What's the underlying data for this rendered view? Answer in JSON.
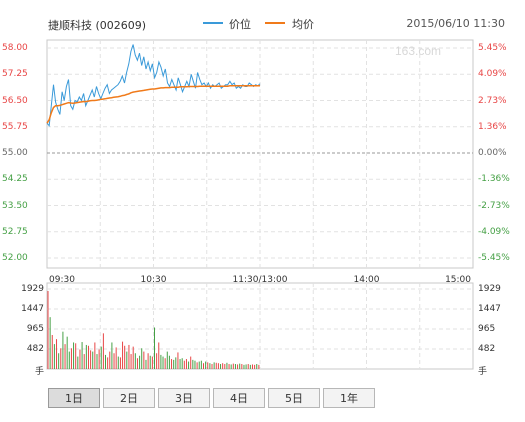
{
  "header": {
    "title": "捷顺科技 (002609)",
    "legend": [
      {
        "label": "价位",
        "color": "#3a9ad9"
      },
      {
        "label": "均价",
        "color": "#f07a1a"
      }
    ],
    "timestamp": "2015/06/10 11:30",
    "watermark": "163.com"
  },
  "colors": {
    "up": "#e84545",
    "down": "#45a045",
    "neutral": "#666666"
  },
  "chart_data": {
    "type": "line",
    "price_ticks": [
      "58.00",
      "57.25",
      "56.50",
      "55.75",
      "55.00",
      "54.25",
      "53.50",
      "52.75",
      "52.00"
    ],
    "percent_ticks": [
      "5.45%",
      "4.09%",
      "2.73%",
      "1.36%",
      "0.00%",
      "-1.36%",
      "-2.73%",
      "-4.09%",
      "-5.45%"
    ],
    "time_ticks": [
      "09:30",
      "10:30",
      "11:30/13:00",
      "14:00",
      "15:00"
    ],
    "ylim": [
      52.0,
      58.0
    ],
    "prev_close": 55.0,
    "series": [
      {
        "name": "价位",
        "color": "#3a9ad9",
        "values": [
          55.85,
          55.78,
          56.35,
          56.95,
          56.45,
          56.25,
          56.1,
          56.75,
          56.5,
          56.9,
          57.1,
          56.35,
          56.25,
          56.5,
          56.45,
          56.6,
          56.5,
          56.7,
          56.35,
          56.5,
          56.65,
          56.8,
          56.6,
          56.9,
          56.7,
          56.55,
          56.7,
          56.85,
          56.95,
          56.7,
          56.8,
          56.85,
          56.9,
          56.95,
          57.05,
          57.2,
          57.0,
          57.3,
          57.55,
          57.9,
          58.1,
          57.8,
          57.65,
          57.85,
          57.5,
          57.75,
          57.4,
          57.6,
          57.35,
          57.55,
          57.15,
          57.3,
          57.6,
          57.45,
          57.2,
          57.4,
          57.0,
          56.9,
          57.1,
          56.95,
          56.8,
          57.15,
          56.95,
          56.75,
          56.9,
          57.05,
          56.9,
          57.25,
          57.05,
          56.85,
          57.3,
          57.1,
          56.95,
          57.0,
          56.9,
          57.0,
          56.85,
          56.95,
          56.9,
          56.95,
          57.0,
          56.85,
          56.9,
          56.95,
          56.95,
          57.05,
          56.95,
          57.0,
          56.85,
          56.9,
          56.85,
          56.95,
          56.9,
          56.9,
          57.0,
          56.95,
          56.9,
          56.95,
          56.92,
          56.98
        ]
      },
      {
        "name": "均价",
        "color": "#f07a1a",
        "values": [
          55.85,
          55.95,
          56.15,
          56.3,
          56.35,
          56.35,
          56.36,
          56.38,
          56.4,
          56.42,
          56.44,
          56.43,
          56.42,
          56.43,
          56.44,
          56.45,
          56.46,
          56.47,
          56.47,
          56.48,
          56.49,
          56.5,
          56.5,
          56.51,
          56.52,
          56.53,
          56.54,
          56.55,
          56.56,
          56.57,
          56.58,
          56.59,
          56.6,
          56.61,
          56.62,
          56.64,
          56.65,
          56.67,
          56.69,
          56.72,
          56.74,
          56.75,
          56.76,
          56.77,
          56.78,
          56.79,
          56.8,
          56.81,
          56.82,
          56.83,
          56.83,
          56.84,
          56.85,
          56.86,
          56.86,
          56.87,
          56.87,
          56.87,
          56.88,
          56.88,
          56.88,
          56.88,
          56.89,
          56.89,
          56.89,
          56.89,
          56.9,
          56.9,
          56.9,
          56.9,
          56.9,
          56.91,
          56.91,
          56.91,
          56.91,
          56.91,
          56.91,
          56.91,
          56.91,
          56.91,
          56.91,
          56.91,
          56.91,
          56.91,
          56.91,
          56.92,
          56.92,
          56.92,
          56.92,
          56.92,
          56.92,
          56.92,
          56.92,
          56.92,
          56.92,
          56.92,
          56.92,
          56.92,
          56.92,
          56.92
        ]
      }
    ],
    "volume": {
      "ticks": [
        "1929",
        "1447",
        "965",
        "482",
        "手"
      ],
      "max": 1929,
      "values": [
        1880,
        1250,
        820,
        600,
        720,
        380,
        500,
        900,
        600,
        780,
        420,
        500,
        640,
        620,
        300,
        470,
        650,
        360,
        580,
        560,
        450,
        420,
        640,
        360,
        470,
        540,
        860,
        340,
        280,
        420,
        640,
        380,
        520,
        300,
        280,
        660,
        560,
        420,
        580,
        360,
        540,
        380,
        260,
        320,
        500,
        420,
        220,
        380,
        320,
        300,
        1000,
        380,
        640,
        340,
        300,
        260,
        420,
        320,
        240,
        220,
        280,
        400,
        240,
        260,
        200,
        240,
        180,
        300,
        220,
        200,
        160,
        180,
        200,
        140,
        180,
        160,
        140,
        120,
        160,
        150,
        140,
        120,
        140,
        120,
        150,
        120,
        110,
        130,
        120,
        110,
        130,
        120,
        100,
        110,
        120,
        100,
        110,
        100,
        120,
        100
      ],
      "direction": [
        "u",
        "d",
        "u",
        "d",
        "u",
        "d",
        "u",
        "d",
        "u",
        "d",
        "d",
        "u",
        "d",
        "u",
        "d",
        "u",
        "d",
        "u",
        "d",
        "u",
        "u",
        "d",
        "u",
        "d",
        "u",
        "d",
        "u",
        "d",
        "u",
        "u",
        "d",
        "u",
        "u",
        "d",
        "u",
        "u",
        "u",
        "d",
        "u",
        "u",
        "u",
        "d",
        "u",
        "d",
        "d",
        "u",
        "d",
        "u",
        "d",
        "u",
        "d",
        "u",
        "u",
        "d",
        "d",
        "u",
        "d",
        "d",
        "u",
        "d",
        "d",
        "u",
        "d",
        "d",
        "u",
        "u",
        "d",
        "u",
        "d",
        "d",
        "u",
        "d",
        "d",
        "u",
        "d",
        "u",
        "d",
        "u",
        "d",
        "u",
        "u",
        "d",
        "u",
        "u",
        "d",
        "u",
        "d",
        "u",
        "d",
        "u",
        "d",
        "u",
        "d",
        "d",
        "u",
        "d",
        "u",
        "u",
        "d",
        "u"
      ]
    }
  },
  "tabs": [
    {
      "label": "1日",
      "active": true
    },
    {
      "label": "2日",
      "active": false
    },
    {
      "label": "3日",
      "active": false
    },
    {
      "label": "4日",
      "active": false
    },
    {
      "label": "5日",
      "active": false
    },
    {
      "label": "1年",
      "active": false
    }
  ]
}
